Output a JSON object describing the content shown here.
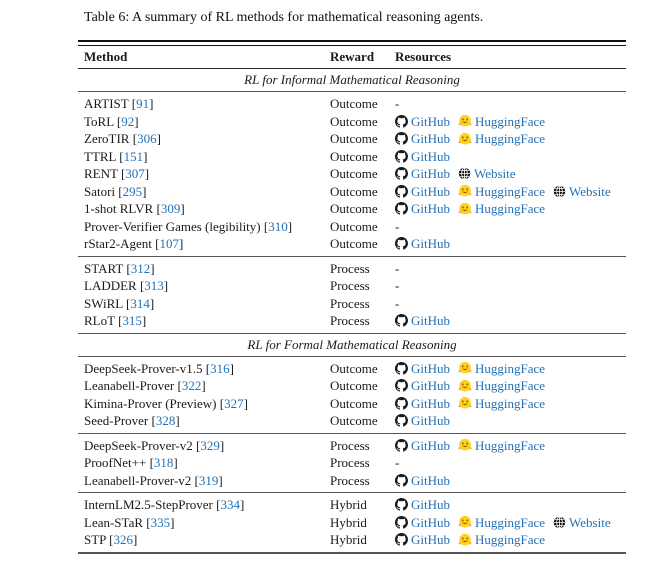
{
  "title": "Table 6: A summary of RL methods for mathematical reasoning agents.",
  "columns": [
    "Method",
    "Reward",
    "Resources"
  ],
  "empty_resource_placeholder": "-",
  "colors": {
    "link_blue": "#2471b8",
    "rule_gray": "#555555",
    "text": "#1a1a1a",
    "hf_yellow": "#ffd21e",
    "github_black": "#191b1f"
  },
  "resource_labels": {
    "github": "GitHub",
    "huggingface": "HuggingFace",
    "website": "Website"
  },
  "sections": [
    {
      "header": "RL for Informal Mathematical Reasoning",
      "groups": [
        {
          "rows": [
            {
              "method": "ARTIST",
              "cite": "91",
              "reward": "Outcome",
              "resources": []
            },
            {
              "method": "ToRL",
              "cite": "92",
              "reward": "Outcome",
              "resources": [
                "github",
                "huggingface"
              ]
            },
            {
              "method": "ZeroTIR",
              "cite": "306",
              "reward": "Outcome",
              "resources": [
                "github",
                "huggingface"
              ]
            },
            {
              "method": "TTRL",
              "cite": "151",
              "reward": "Outcome",
              "resources": [
                "github"
              ]
            },
            {
              "method": "RENT",
              "cite": "307",
              "reward": "Outcome",
              "resources": [
                "github",
                "website"
              ]
            },
            {
              "method": "Satori",
              "cite": "295",
              "reward": "Outcome",
              "resources": [
                "github",
                "huggingface",
                "website"
              ]
            },
            {
              "method": "1-shot RLVR",
              "cite": "309",
              "reward": "Outcome",
              "resources": [
                "github",
                "huggingface"
              ]
            },
            {
              "method": "Prover-Verifier Games (legibility)",
              "cite": "310",
              "reward": "Outcome",
              "resources": []
            },
            {
              "method": "rStar2-Agent",
              "cite": "107",
              "reward": "Outcome",
              "resources": [
                "github"
              ]
            }
          ]
        },
        {
          "rows": [
            {
              "method": "START",
              "cite": "312",
              "reward": "Process",
              "resources": []
            },
            {
              "method": "LADDER",
              "cite": "313",
              "reward": "Process",
              "resources": []
            },
            {
              "method": "SWiRL",
              "cite": "314",
              "reward": "Process",
              "resources": []
            },
            {
              "method": "RLoT",
              "cite": "315",
              "reward": "Process",
              "resources": [
                "github"
              ]
            }
          ]
        }
      ]
    },
    {
      "header": "RL for Formal Mathematical Reasoning",
      "groups": [
        {
          "rows": [
            {
              "method": "DeepSeek-Prover-v1.5",
              "cite": "316",
              "reward": "Outcome",
              "resources": [
                "github",
                "huggingface"
              ]
            },
            {
              "method": "Leanabell-Prover",
              "cite": "322",
              "reward": "Outcome",
              "resources": [
                "github",
                "huggingface"
              ]
            },
            {
              "method": "Kimina-Prover (Preview)",
              "cite": "327",
              "reward": "Outcome",
              "resources": [
                "github",
                "huggingface"
              ]
            },
            {
              "method": "Seed-Prover",
              "cite": "328",
              "reward": "Outcome",
              "resources": [
                "github"
              ]
            }
          ]
        },
        {
          "rows": [
            {
              "method": "DeepSeek-Prover-v2",
              "cite": "329",
              "reward": "Process",
              "resources": [
                "github",
                "huggingface"
              ]
            },
            {
              "method": "ProofNet++",
              "cite": "318",
              "reward": "Process",
              "resources": []
            },
            {
              "method": "Leanabell-Prover-v2",
              "cite": "319",
              "reward": "Process",
              "resources": [
                "github"
              ]
            }
          ]
        },
        {
          "rows": [
            {
              "method": "InternLM2.5-StepProver",
              "cite": "334",
              "reward": "Hybrid",
              "resources": [
                "github"
              ]
            },
            {
              "method": "Lean-STaR",
              "cite": "335",
              "reward": "Hybrid",
              "resources": [
                "github",
                "huggingface",
                "website"
              ]
            },
            {
              "method": "STP",
              "cite": "326",
              "reward": "Hybrid",
              "resources": [
                "github",
                "huggingface"
              ]
            }
          ]
        }
      ]
    }
  ]
}
